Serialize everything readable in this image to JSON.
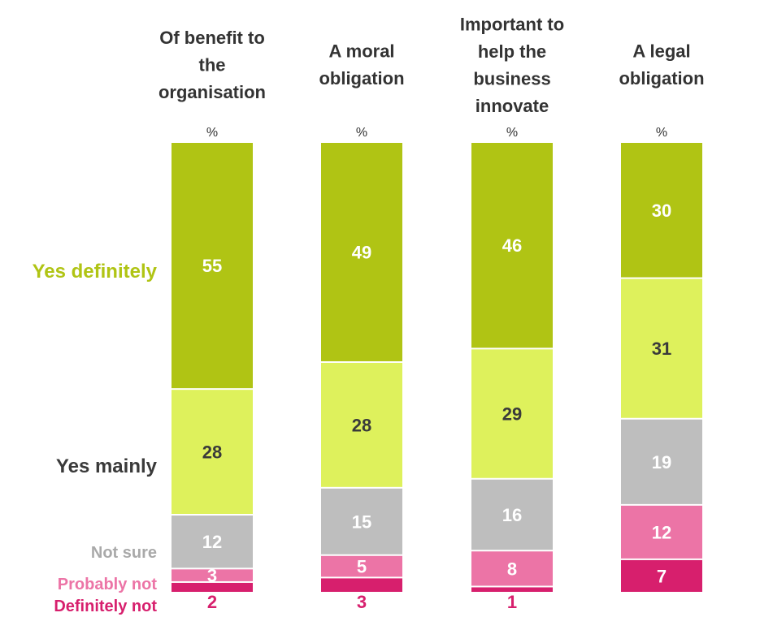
{
  "chart_data": {
    "type": "bar",
    "stacked": true,
    "orientation": "vertical",
    "unit_label": "%",
    "categories": [
      [
        "Of benefit to",
        "the",
        "organisation"
      ],
      [
        "A moral",
        "obligation"
      ],
      [
        "Important to",
        "help the",
        "business",
        "innovate"
      ],
      [
        "A legal",
        "obligation"
      ]
    ],
    "series": [
      {
        "name": "Yes definitely",
        "color": "#b0c414",
        "label_color": "#ffffff",
        "values": [
          55,
          49,
          46,
          30
        ]
      },
      {
        "name": "Yes mainly",
        "color": "#def15c",
        "label_color": "#3a3a3a",
        "values": [
          28,
          28,
          29,
          31
        ]
      },
      {
        "name": "Not sure",
        "color": "#bebebe",
        "label_color": "#ffffff",
        "values": [
          12,
          15,
          16,
          19
        ]
      },
      {
        "name": "Probably not",
        "color": "#ec74a6",
        "label_color": "#ffffff",
        "values": [
          3,
          5,
          8,
          12
        ]
      },
      {
        "name": "Definitely not",
        "color": "#d71f6d",
        "label_color": "#ffffff",
        "values": [
          2,
          3,
          1,
          7
        ]
      }
    ],
    "legend": {
      "position": "left",
      "entries": [
        {
          "text": "Yes definitely",
          "color": "#b0c414"
        },
        {
          "text": "Yes mainly",
          "color": "#3a3a3a"
        },
        {
          "text": "Not sure",
          "color": "#a9a9a9"
        },
        {
          "text": "Probably not",
          "color": "#ec74a6"
        },
        {
          "text": "Definitely not",
          "color": "#d71f6d"
        }
      ]
    },
    "small_value_label_color": "#d71f6d",
    "ylim": [
      0,
      100
    ]
  }
}
